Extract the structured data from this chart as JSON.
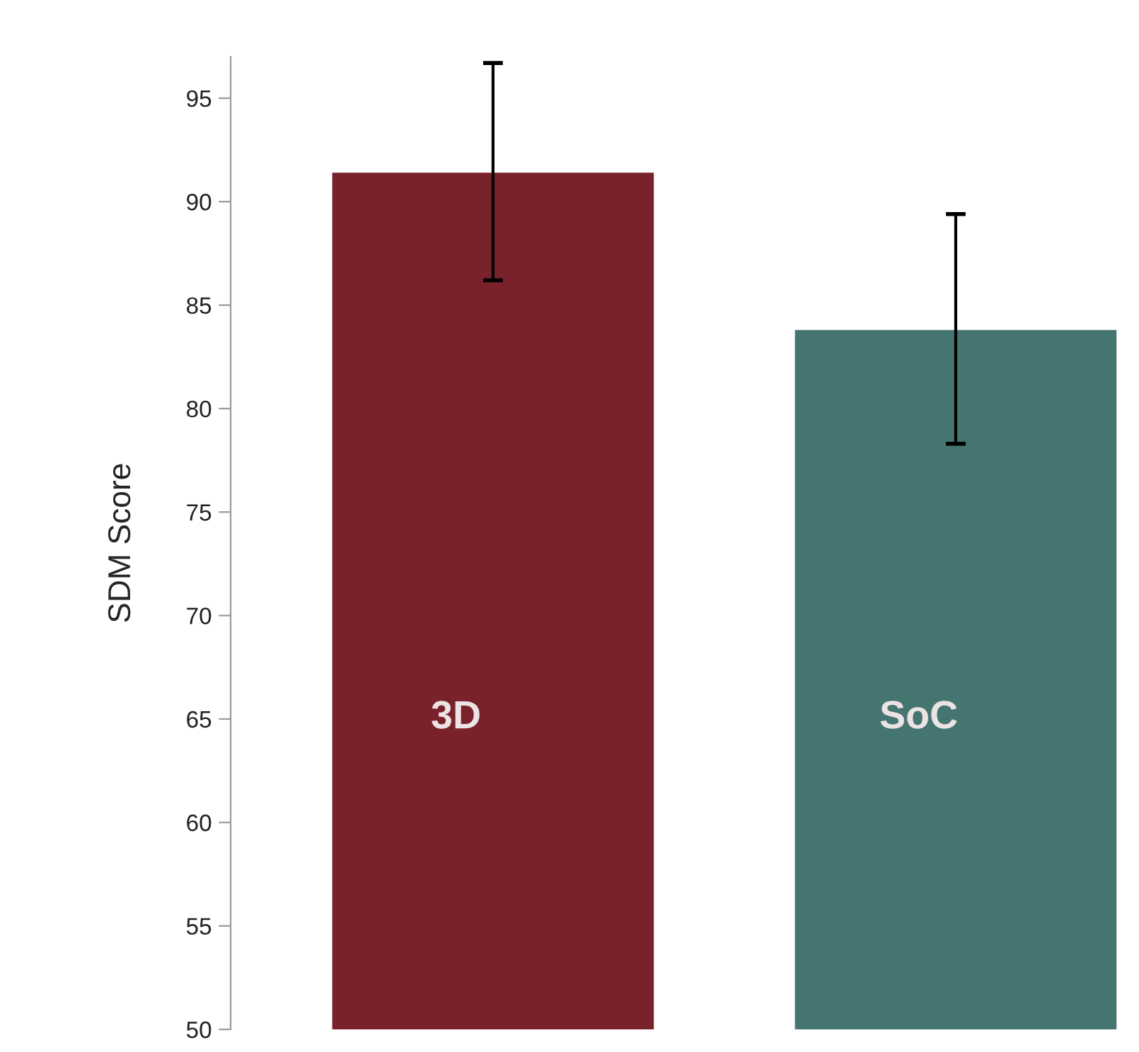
{
  "chart_data": {
    "type": "bar",
    "ylabel": "SDM Score",
    "categories": [
      "3D",
      "SoC"
    ],
    "values": [
      91.4,
      83.8
    ],
    "colors": [
      "#7a222c",
      "#457571"
    ],
    "errors": [
      [
        86.2,
        96.7
      ],
      [
        78.3,
        89.4
      ]
    ],
    "ylim": [
      50,
      97
    ],
    "yticks": [
      50,
      55,
      60,
      65,
      70,
      75,
      80,
      85,
      90,
      95
    ],
    "tick_labels": "y",
    "grid": false,
    "legend": false
  }
}
